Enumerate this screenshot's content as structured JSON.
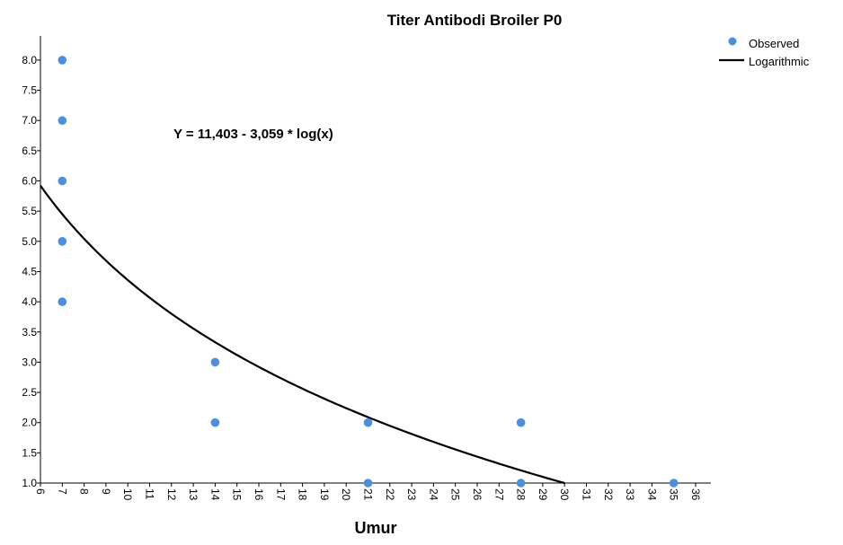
{
  "chart_data": {
    "type": "scatter",
    "title": "Titer Antibodi Broiler P0",
    "xlabel": "Umur",
    "ylabel": "",
    "xlim": [
      6,
      36.7
    ],
    "ylim": [
      1.0,
      8.4
    ],
    "x_ticks": [
      6,
      7,
      8,
      9,
      10,
      11,
      12,
      13,
      14,
      15,
      16,
      17,
      18,
      19,
      20,
      21,
      22,
      23,
      24,
      25,
      26,
      27,
      28,
      29,
      30,
      31,
      32,
      33,
      34,
      35,
      36
    ],
    "y_ticks": [
      1.0,
      1.5,
      2.0,
      2.5,
      3.0,
      3.5,
      4.0,
      4.5,
      5.0,
      5.5,
      6.0,
      6.5,
      7.0,
      7.5,
      8.0
    ],
    "series": [
      {
        "name": "Observed",
        "kind": "scatter",
        "color": "#4a90e2",
        "points": [
          [
            7,
            8
          ],
          [
            7,
            7
          ],
          [
            7,
            6
          ],
          [
            7,
            5
          ],
          [
            7,
            4
          ],
          [
            14,
            3
          ],
          [
            14,
            2
          ],
          [
            21,
            2
          ],
          [
            21,
            1
          ],
          [
            28,
            2
          ],
          [
            28,
            1
          ],
          [
            35,
            1
          ]
        ]
      },
      {
        "name": "Logarithmic",
        "kind": "line",
        "color": "#000000",
        "model": {
          "intercept": 11.403,
          "slope": -3.059,
          "function": "ln"
        },
        "x_range": [
          6,
          30
        ]
      }
    ],
    "annotation": "Y = 11,403 - 3,059 * log(x)",
    "legend_position": "top-right",
    "grid": false
  }
}
